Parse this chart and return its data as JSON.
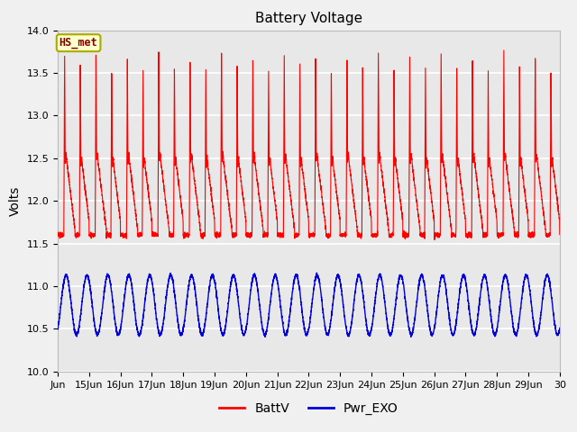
{
  "title": "Battery Voltage",
  "ylabel": "Volts",
  "xlim_days": [
    14,
    30
  ],
  "ylim": [
    10.0,
    14.0
  ],
  "yticks": [
    10.0,
    10.5,
    11.0,
    11.5,
    12.0,
    12.5,
    13.0,
    13.5,
    14.0
  ],
  "xtick_labels": [
    "Jun",
    "15Jun",
    "16Jun",
    "17Jun",
    "18Jun",
    "19Jun",
    "20Jun",
    "21Jun",
    "22Jun",
    "23Jun",
    "24Jun",
    "25Jun",
    "26Jun",
    "27Jun",
    "28Jun",
    "29Jun",
    "30"
  ],
  "xtick_positions": [
    14,
    15,
    16,
    17,
    18,
    19,
    20,
    21,
    22,
    23,
    24,
    25,
    26,
    27,
    28,
    29,
    30
  ],
  "batt_color": "#ff0000",
  "exo_color": "#0000dd",
  "batt_label": "BattV",
  "exo_label": "Pwr_EXO",
  "legend_label": "HS_met",
  "legend_bg": "#ffffcc",
  "legend_border": "#aaaa00",
  "plot_bg": "#e8e8e8",
  "fig_bg": "#f0f0f0",
  "grid_color": "#ffffff",
  "title_fontsize": 11,
  "label_fontsize": 10,
  "tick_fontsize": 8,
  "legend_fontsize": 10
}
